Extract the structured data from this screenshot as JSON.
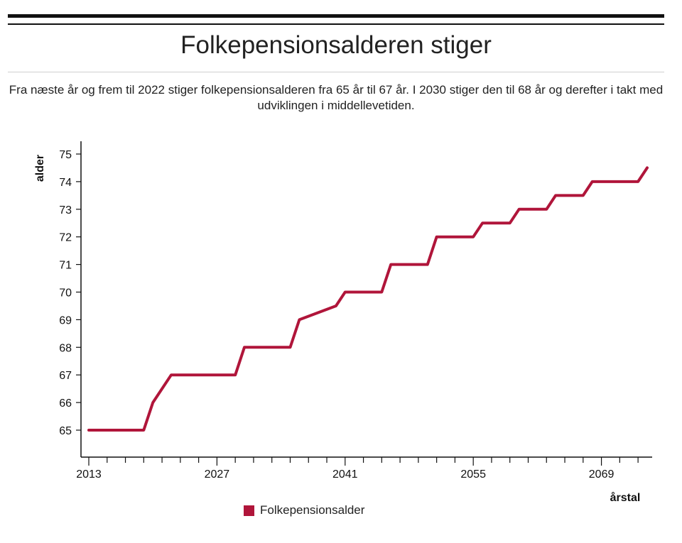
{
  "header": {
    "title": "Folkepensionsalderen stiger",
    "subtitle": "Fra næste år og frem til 2022 stiger folkepensionsalderen fra 65 år til 67 år. I 2030 stiger den til 68 år og derefter i takt med udviklingen i middellevetiden."
  },
  "chart_data": {
    "type": "line",
    "title": "",
    "xlabel": "årstal",
    "ylabel": "alder",
    "xlim": [
      2013,
      2075
    ],
    "ylim": [
      64,
      75.5
    ],
    "x_ticks": [
      2013,
      2027,
      2041,
      2055,
      2069
    ],
    "y_ticks": [
      65,
      66,
      67,
      68,
      69,
      70,
      71,
      72,
      73,
      74,
      75
    ],
    "grid": false,
    "legend_position": "bottom",
    "series": [
      {
        "name": "Folkepensionsalder",
        "color": "#b0153a",
        "x": [
          2013,
          2019,
          2020,
          2022,
          2029,
          2030,
          2035,
          2036,
          2040,
          2041,
          2045,
          2046,
          2050,
          2051,
          2055,
          2056,
          2059,
          2060,
          2063,
          2064,
          2067,
          2068,
          2072,
          2073,
          2074
        ],
        "y": [
          65,
          65,
          66,
          67,
          67,
          68,
          68,
          69,
          69.5,
          70,
          70,
          71,
          71,
          72,
          72,
          72.5,
          72.5,
          73,
          73,
          73.5,
          73.5,
          74,
          74,
          74,
          74.5
        ]
      }
    ]
  }
}
